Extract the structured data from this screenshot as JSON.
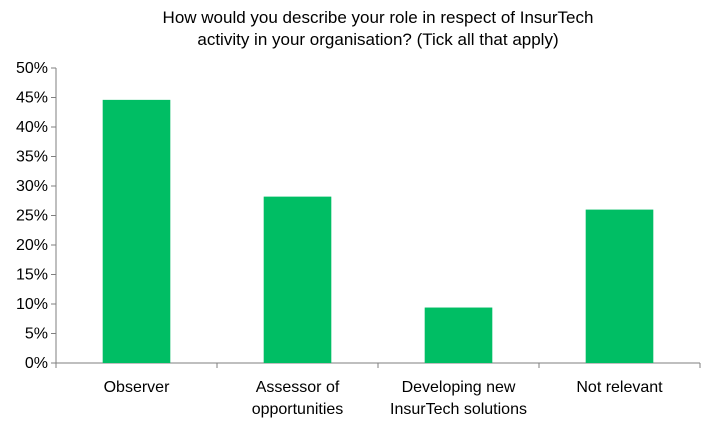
{
  "chart_data": {
    "type": "bar",
    "title": "How would you describe your role in respect of InsurTech activity in your organisation? (Tick all that apply)",
    "title_lines": [
      "How would you describe your role in respect of InsurTech",
      "activity in your organisation? (Tick all that apply)"
    ],
    "categories": [
      "Observer",
      "Assessor of opportunities",
      "Developing new InsurTech solutions",
      "Not relevant"
    ],
    "category_lines": [
      [
        "Observer"
      ],
      [
        "Assessor of",
        "opportunities"
      ],
      [
        "Developing new",
        "InsurTech solutions"
      ],
      [
        "Not relevant"
      ]
    ],
    "values": [
      0.446,
      0.282,
      0.094,
      0.26
    ],
    "ylim": [
      0,
      0.5
    ],
    "yticks": [
      "0%",
      "5%",
      "10%",
      "15%",
      "20%",
      "25%",
      "30%",
      "35%",
      "40%",
      "45%",
      "50%"
    ],
    "xlabel": "",
    "ylabel": "",
    "grid": false,
    "legend": "none",
    "bar_color": "#00be64"
  }
}
